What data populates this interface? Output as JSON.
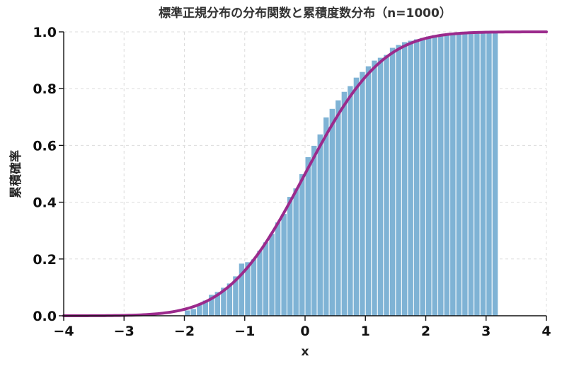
{
  "chart_data": {
    "type": "bar",
    "title": "標準正規分布の分布関数と累積度数分布（n=1000）",
    "xlabel": "x",
    "ylabel": "累積確率",
    "xlim": [
      -4,
      4
    ],
    "ylim": [
      0,
      1.0
    ],
    "xticks": [
      -4,
      -3,
      -2,
      -1,
      0,
      1,
      2,
      3,
      4
    ],
    "xtick_labels": [
      "−4",
      "−3",
      "−2",
      "−1",
      "0",
      "1",
      "2",
      "3",
      "4"
    ],
    "yticks": [
      0.0,
      0.2,
      0.4,
      0.6,
      0.8,
      1.0
    ],
    "ytick_labels": [
      "0.0",
      "0.2",
      "0.4",
      "0.6",
      "0.8",
      "1.0"
    ],
    "grid": true,
    "series": [
      {
        "type": "bar",
        "bin_edges": [
          -2.0,
          -1.9,
          -1.8,
          -1.7,
          -1.6,
          -1.5,
          -1.4,
          -1.3,
          -1.2,
          -1.1,
          -1.0,
          -0.9,
          -0.8,
          -0.7,
          -0.6,
          -0.5,
          -0.4,
          -0.3,
          -0.2,
          -0.1,
          0.0,
          0.1,
          0.2,
          0.3,
          0.4,
          0.5,
          0.6,
          0.7,
          0.8,
          0.9,
          1.0,
          1.1,
          1.2,
          1.3,
          1.4,
          1.5,
          1.6,
          1.7,
          1.8,
          1.9,
          2.0,
          2.1,
          2.2,
          2.3,
          2.4,
          2.5,
          2.6,
          2.7,
          2.8,
          2.9,
          3.0,
          3.1,
          3.2
        ],
        "values": [
          0.02,
          0.025,
          0.04,
          0.055,
          0.075,
          0.085,
          0.1,
          0.115,
          0.14,
          0.185,
          0.19,
          0.2,
          0.23,
          0.26,
          0.29,
          0.33,
          0.36,
          0.42,
          0.45,
          0.5,
          0.56,
          0.6,
          0.64,
          0.7,
          0.73,
          0.76,
          0.79,
          0.81,
          0.84,
          0.86,
          0.88,
          0.9,
          0.91,
          0.92,
          0.945,
          0.955,
          0.965,
          0.97,
          0.975,
          0.98,
          0.985,
          0.99,
          0.992,
          0.994,
          0.995,
          0.996,
          0.997,
          0.998,
          0.998,
          0.999,
          1.0,
          1.0
        ]
      },
      {
        "type": "line",
        "function": "standard normal CDF",
        "x_range": [
          -4,
          4
        ]
      }
    ]
  }
}
